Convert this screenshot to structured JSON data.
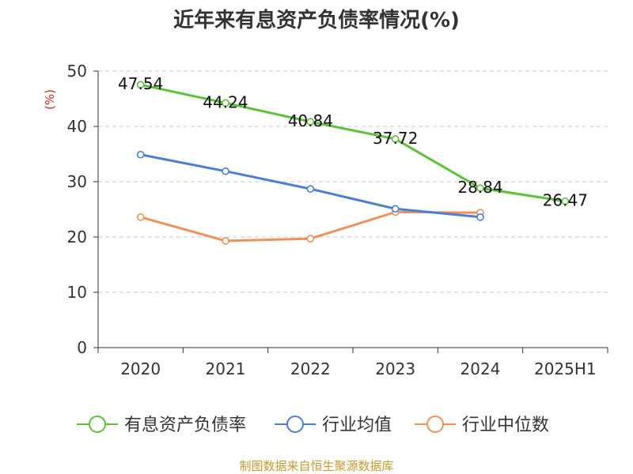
{
  "chart_data": {
    "type": "line",
    "title": "近年来有息资产负债率情况(%)",
    "unit_label": "(%)",
    "categories": [
      "2020",
      "2021",
      "2022",
      "2023",
      "2024",
      "2025H1"
    ],
    "ylim": [
      0,
      50
    ],
    "yticks": [
      0,
      10,
      20,
      30,
      40,
      50
    ],
    "grid": true,
    "legend_position": "bottom",
    "series": [
      {
        "name": "有息资产负债率",
        "color": "#5cc23a",
        "show_labels": true,
        "values": [
          47.54,
          44.24,
          40.84,
          37.72,
          28.84,
          26.47
        ]
      },
      {
        "name": "行业均值",
        "color": "#4a7fd4",
        "show_labels": false,
        "values": [
          34.9,
          31.9,
          28.7,
          25.1,
          23.6,
          null
        ]
      },
      {
        "name": "行业中位数",
        "color": "#f0905a",
        "show_labels": false,
        "values": [
          23.6,
          19.3,
          19.7,
          24.5,
          24.4,
          null
        ]
      }
    ]
  },
  "source": "制图数据来自恒生聚源数据库"
}
